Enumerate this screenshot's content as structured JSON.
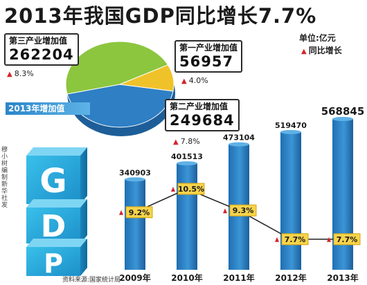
{
  "title": "2013年我国GDP同比增长7.7%",
  "unit_label": "单位:亿元",
  "legend": {
    "growth_label": "同比增长",
    "growth_color": "#d4232b"
  },
  "pie": {
    "year_label": "2013年增加值",
    "slices": [
      {
        "name": "第一产业增加值",
        "value": "56957",
        "growth": "4.0%",
        "color": "#f0c22a"
      },
      {
        "name": "第二产业增加值",
        "value": "249684",
        "growth": "7.8%",
        "color": "#2f7fc4"
      },
      {
        "name": "第三产业增加值",
        "value": "262204",
        "growth": "8.3%",
        "color": "#8cc63f"
      }
    ]
  },
  "gdp_block_letters": "GDP",
  "chart_data": {
    "type": "bar",
    "categories": [
      "2009年",
      "2010年",
      "2011年",
      "2012年",
      "2013年"
    ],
    "values": [
      340903,
      401513,
      473104,
      519470,
      568845
    ],
    "value_labels": [
      "340903",
      "401513",
      "473104",
      "519470",
      "568845"
    ],
    "growth_rates": [
      9.2,
      10.5,
      9.3,
      7.7,
      7.7
    ],
    "growth_labels": [
      "9.2%",
      "10.5%",
      "9.3%",
      "7.7%",
      "7.7%"
    ],
    "bar_color": "#2a7fc0",
    "line_color": "#222222"
  },
  "credit": "穆小树编制新华社发",
  "source": "资料来源:国家统计局"
}
